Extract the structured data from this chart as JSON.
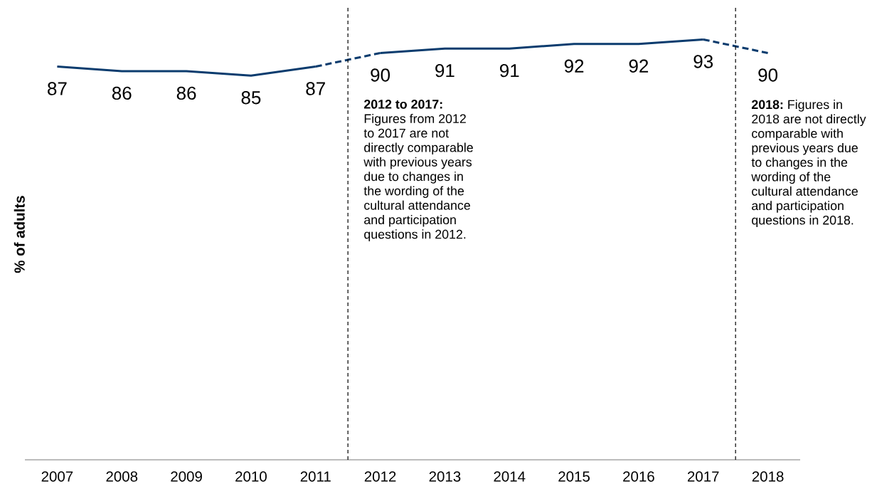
{
  "chart_data": {
    "type": "line",
    "ylabel": "% of adults",
    "x": [
      2007,
      2008,
      2009,
      2010,
      2011,
      2012,
      2013,
      2014,
      2015,
      2016,
      2017,
      2018
    ],
    "xlim": [
      2006.5,
      2018.5
    ],
    "xticks": [
      2007,
      2008,
      2009,
      2010,
      2011,
      2012,
      2013,
      2014,
      2015,
      2016,
      2017,
      2018
    ],
    "ylim": [
      0,
      100
    ],
    "tick_labels": "x",
    "marker": "none",
    "series": [
      {
        "color": "#0b3c6e",
        "line_style": "solid",
        "values": [
          87,
          86,
          86,
          85,
          87,
          null,
          null,
          null,
          null,
          null,
          null,
          null
        ],
        "value_labels": [
          "87",
          "86",
          "86",
          "85",
          "87",
          null,
          null,
          null,
          null,
          null,
          null,
          null
        ]
      },
      {
        "color": "#0b3c6e",
        "line_style": "dashed",
        "values": [
          null,
          null,
          null,
          null,
          87,
          90,
          null,
          null,
          null,
          null,
          null,
          null
        ]
      },
      {
        "color": "#0b3c6e",
        "line_style": "solid",
        "values": [
          null,
          null,
          null,
          null,
          null,
          90,
          91,
          91,
          92,
          92,
          93,
          null
        ],
        "value_labels": [
          null,
          null,
          null,
          null,
          null,
          "90",
          "91",
          "91",
          "92",
          "92",
          "93",
          null
        ]
      },
      {
        "color": "#0b3c6e",
        "line_style": "dashed",
        "values": [
          null,
          null,
          null,
          null,
          null,
          null,
          null,
          null,
          null,
          null,
          93,
          90
        ],
        "value_labels": [
          null,
          null,
          null,
          null,
          null,
          null,
          null,
          null,
          null,
          null,
          null,
          "90"
        ]
      }
    ],
    "ref_lines": [
      {
        "axis": "x",
        "value": 2011.5,
        "label": "**2012 to 2017:** Figures from 2012 to 2017 are not directly comparable with previous years due to changes in the wording of the cultural attendance and participation questions in 2012.",
        "color": "#000000",
        "line_style": "dashed"
      },
      {
        "axis": "x",
        "value": 2017.5,
        "label": "**2018:** Figures in 2018 are not directly comparable with previous years due to changes in the wording of the cultural attendance and participation questions in 2018.",
        "color": "#000000",
        "line_style": "dashed"
      }
    ]
  }
}
